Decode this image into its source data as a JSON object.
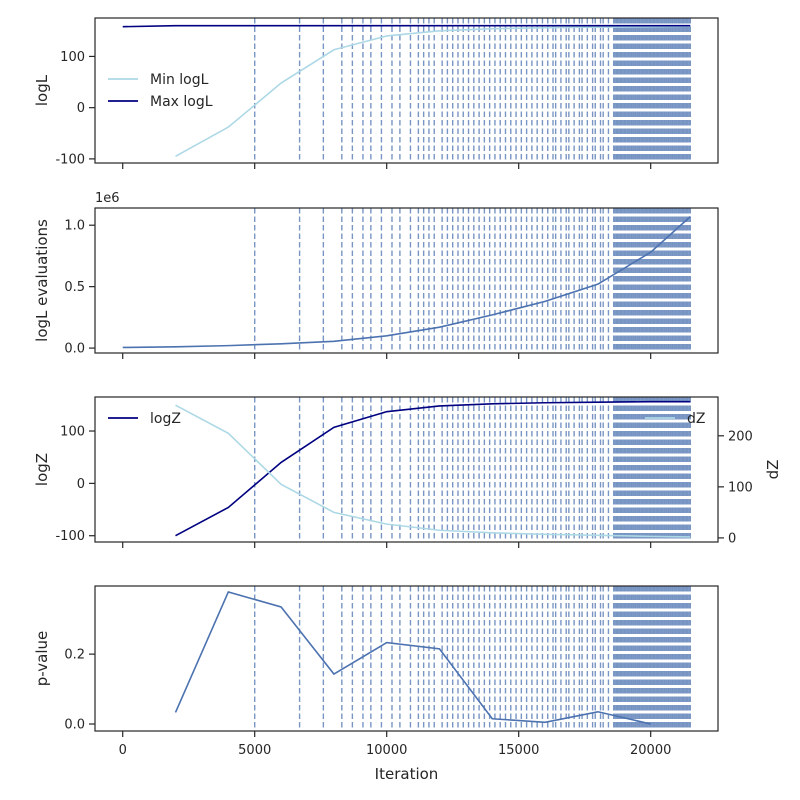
{
  "chart_data": [
    {
      "type": "line",
      "panel": "logL",
      "ylabel": "logL",
      "ylim": [
        -108,
        175
      ],
      "yticks": [
        -100,
        0,
        100
      ],
      "legend": {
        "placement": "center-left",
        "entries": [
          "Min logL",
          "Max logL"
        ]
      },
      "series": [
        {
          "name": "Min logL",
          "color": "#add8e6",
          "x": [
            2000,
            4000,
            6000,
            8000,
            10000,
            12000,
            14000,
            16000,
            18000,
            20000,
            21500
          ],
          "y": [
            -95,
            -38,
            48,
            113,
            140,
            150,
            154,
            156,
            157,
            158,
            159
          ]
        },
        {
          "name": "Max logL",
          "color": "#000080",
          "x": [
            0,
            2000,
            4000,
            6000,
            8000,
            10000,
            12000,
            14000,
            16000,
            18000,
            20000,
            21500
          ],
          "y": [
            158,
            160,
            160,
            160,
            160,
            160,
            160,
            160,
            160,
            160,
            160,
            160
          ]
        }
      ]
    },
    {
      "type": "line",
      "panel": "evals",
      "ylabel": "logL evaluations",
      "offset_text": "1e6",
      "ylim": [
        -0.04,
        1.14
      ],
      "yticks": [
        0.0,
        0.5,
        1.0
      ],
      "ytick_labels": [
        "0.0",
        "0.5",
        "1.0"
      ],
      "series": [
        {
          "color": "#4c72b0",
          "x": [
            0,
            2000,
            4000,
            6000,
            8000,
            10000,
            12000,
            14000,
            16000,
            18000,
            20000,
            21500
          ],
          "y": [
            0.005,
            0.01,
            0.02,
            0.035,
            0.055,
            0.1,
            0.17,
            0.27,
            0.38,
            0.52,
            0.78,
            1.07
          ]
        }
      ]
    },
    {
      "type": "line",
      "panel": "logZ",
      "ylabel": "logZ",
      "ylabel_right": "dZ",
      "ylim": [
        -112,
        165
      ],
      "yticks": [
        -100,
        0,
        100
      ],
      "ylim_right": [
        -8,
        276
      ],
      "yticks_right": [
        0,
        100,
        200
      ],
      "legend": {
        "placement": "top-left",
        "entries": [
          "logZ"
        ]
      },
      "legend_right": {
        "placement": "top-right",
        "entries": [
          "dZ"
        ]
      },
      "series": [
        {
          "name": "logZ",
          "color": "#000080",
          "axis": "left",
          "x": [
            2000,
            4000,
            6000,
            8000,
            10000,
            12000,
            14000,
            16000,
            18000,
            20000,
            21500
          ],
          "y": [
            -100,
            -46,
            40,
            107,
            137,
            148,
            152,
            154,
            155,
            156,
            156
          ]
        },
        {
          "name": "dZ",
          "color": "#add8e6",
          "axis": "right",
          "x": [
            2000,
            4000,
            6000,
            8000,
            10000,
            12000,
            14000,
            16000,
            18000,
            20000,
            21500
          ],
          "y": [
            260,
            205,
            105,
            50,
            27,
            15,
            10,
            7,
            5,
            3,
            2
          ]
        }
      ]
    },
    {
      "type": "line",
      "panel": "pvalue",
      "ylabel": "p-value",
      "xlabel": "Iteration",
      "ylim": [
        -0.02,
        0.395
      ],
      "yticks": [
        0.0,
        0.2
      ],
      "ytick_labels": [
        "0.0",
        "0.2"
      ],
      "series": [
        {
          "color": "#4c72b0",
          "x": [
            2000,
            4000,
            6000,
            8000,
            10000,
            12000,
            14000,
            16000,
            18000,
            20000
          ],
          "y": [
            0.033,
            0.378,
            0.335,
            0.143,
            0.233,
            0.215,
            0.015,
            0.005,
            0.035,
            0.0
          ]
        }
      ]
    }
  ],
  "shared_x": {
    "xlim": [
      -1050,
      22550
    ],
    "xticks": [
      0,
      5000,
      10000,
      15000,
      20000
    ],
    "xtick_labels": [
      "0",
      "5000",
      "10000",
      "15000",
      "20000"
    ]
  },
  "vlines": {
    "color": "#4c72b0",
    "style": "dashed",
    "x": [
      5000,
      6700,
      7600,
      8300,
      8700,
      9100,
      9400,
      9800,
      10200,
      10500,
      10900,
      11200,
      11400,
      11600,
      11800,
      12100,
      12300,
      12500,
      12700,
      12900,
      13100,
      13300,
      13500,
      13700,
      13900,
      14100,
      14300,
      14500,
      14700,
      14900,
      15100,
      15300,
      15500,
      15700,
      15900,
      16100,
      16300,
      16400,
      16600,
      16800,
      16900,
      17100,
      17300,
      17400,
      17600,
      17800,
      17900,
      18100,
      18200,
      18400,
      18600,
      18650,
      18700,
      18750,
      18800,
      18850,
      18900,
      18950,
      19000,
      19050,
      19100,
      19150,
      19200,
      19250,
      19300,
      19350,
      19400,
      19450,
      19500,
      19550,
      19600,
      19650,
      19700,
      19750,
      19800,
      19850,
      19900,
      19950,
      20000,
      20050,
      20100,
      20150,
      20200,
      20250,
      20300,
      20350,
      20400,
      20450,
      20500,
      20550,
      20600,
      20650,
      20700,
      20750,
      20800,
      20850,
      20900,
      20950,
      21000,
      21050,
      21100,
      21150,
      21200,
      21250,
      21300,
      21350,
      21400,
      21450,
      21500
    ]
  }
}
